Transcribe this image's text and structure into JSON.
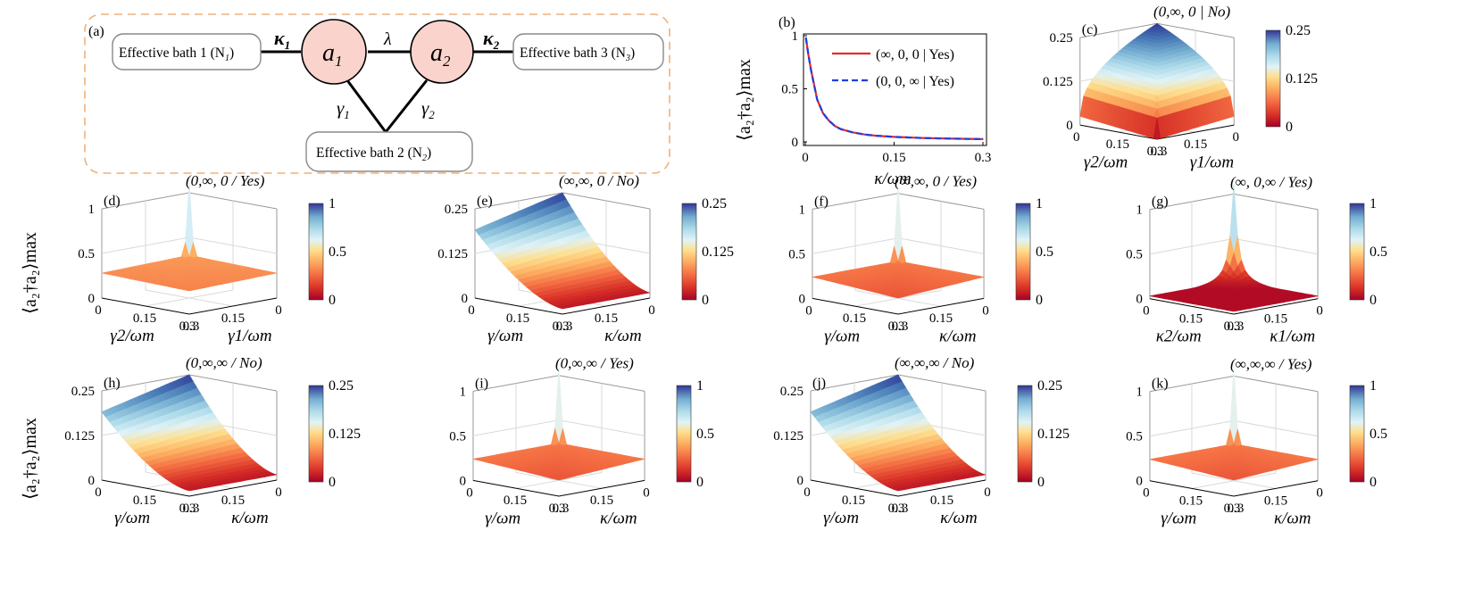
{
  "schematic": {
    "panel_label": "(a)",
    "node1": "a",
    "node1_sub": "1",
    "node2": "a",
    "node2_sub": "2",
    "coupling_lambda": "λ",
    "kappa1": "κ",
    "kappa1_sub": "1",
    "kappa2": "κ",
    "kappa2_sub": "2",
    "gamma1": "γ",
    "gamma1_sub": "1",
    "gamma2": "γ",
    "gamma2_sub": "2",
    "bath1": "Effective bath 1 (N",
    "bath1_sub": "1",
    "bath2": "Effective bath 2  (N",
    "bath2_sub": "2",
    "bath3": "Effective bath 3 (N",
    "bath3_sub": "3",
    "colors": {
      "node_fill": "#f9d3cc",
      "dash_border": "#f0b07a"
    }
  },
  "ylabel_left": "⟨a₂†a₂⟩max",
  "colorscale": [
    "#a50026",
    "#d73027",
    "#f46d43",
    "#fdae61",
    "#fee090",
    "#e0f3f8",
    "#abd9e9",
    "#74add1",
    "#4575b4",
    "#313695"
  ],
  "chart_data": [
    {
      "panel": "(b)",
      "type": "line",
      "xlabel": "κ/ωm",
      "ylabel": "⟨a₂†a₂⟩max",
      "xlim": [
        0,
        0.3
      ],
      "ylim": [
        0,
        1
      ],
      "xticks": [
        "0",
        "0.15",
        "0.3"
      ],
      "yticks": [
        "0",
        "0.5",
        "1"
      ],
      "x": [
        0.001,
        0.005,
        0.01,
        0.02,
        0.03,
        0.04,
        0.05,
        0.06,
        0.08,
        0.1,
        0.12,
        0.15,
        0.18,
        0.2,
        0.25,
        0.3
      ],
      "series": [
        {
          "name": "(∞, 0, 0 | Yes)",
          "color": "#e8282a",
          "style": "solid",
          "values": [
            0.98,
            0.83,
            0.67,
            0.4,
            0.27,
            0.2,
            0.15,
            0.12,
            0.09,
            0.07,
            0.058,
            0.047,
            0.04,
            0.036,
            0.03,
            0.026
          ]
        },
        {
          "name": "(0, 0, ∞ | Yes)",
          "color": "#1f3fe0",
          "style": "dashed",
          "values": [
            0.98,
            0.83,
            0.67,
            0.4,
            0.27,
            0.2,
            0.15,
            0.12,
            0.09,
            0.07,
            0.058,
            0.047,
            0.04,
            0.036,
            0.03,
            0.026
          ]
        }
      ]
    },
    {
      "panel": "(c)",
      "type": "surface",
      "tag": "(0,∞, 0 | No)",
      "xlabel": "γ2/ωm",
      "ylabel": "γ1/ωm",
      "zticks": [
        "0",
        "0.125",
        "0.25"
      ],
      "cbticks": [
        "0",
        "0.125",
        "0.25"
      ],
      "xticks": [
        "0",
        "0.15",
        "0.3"
      ],
      "yticks": [
        "0.3",
        "0.15",
        "0"
      ],
      "zmax": 0.25,
      "surface": "diagonal"
    },
    {
      "panel": "(d)",
      "type": "surface",
      "tag": "(0,∞, 0 / Yes)",
      "xlabel": "γ2/ωm",
      "ylabel": "γ1/ωm",
      "zticks": [
        "0",
        "0.5",
        "1"
      ],
      "cbticks": [
        "0",
        "0.5",
        "1"
      ],
      "xticks": [
        "0",
        "0.15",
        "0.3"
      ],
      "yticks": [
        "0.3",
        "0.15",
        "0"
      ],
      "zmax": 1,
      "surface": "flat_orange"
    },
    {
      "panel": "(e)",
      "type": "surface",
      "tag": "(∞,∞, 0 / No)",
      "xlabel": "γ/ωm",
      "ylabel": "κ/ωm",
      "zticks": [
        "0",
        "0.125",
        "0.25"
      ],
      "cbticks": [
        "0",
        "0.125",
        "0.25"
      ],
      "xticks": [
        "0",
        "0.15",
        "0.3"
      ],
      "yticks": [
        "0.3",
        "0.15",
        "0"
      ],
      "zmax": 0.25,
      "surface": "ramp"
    },
    {
      "panel": "(f)",
      "type": "surface",
      "tag": "(∞,∞, 0 / Yes)",
      "xlabel": "γ/ωm",
      "ylabel": "κ/ωm",
      "zticks": [
        "0",
        "0.5",
        "1"
      ],
      "cbticks": [
        "0",
        "0.5",
        "1"
      ],
      "xticks": [
        "0",
        "0.15",
        "0.3"
      ],
      "yticks": [
        "0.3",
        "0.15",
        "0"
      ],
      "zmax": 1,
      "surface": "spike"
    },
    {
      "panel": "(g)",
      "type": "surface",
      "tag": "(∞, 0,∞ / Yes)",
      "xlabel": "κ2/ωm",
      "ylabel": "κ1/ωm",
      "zticks": [
        "0",
        "0.5",
        "1"
      ],
      "cbticks": [
        "0",
        "0.5",
        "1"
      ],
      "xticks": [
        "0",
        "0.15",
        "0.3"
      ],
      "yticks": [
        "0.3",
        "0.15",
        "0"
      ],
      "zmax": 1,
      "surface": "spike_dark"
    },
    {
      "panel": "(h)",
      "type": "surface",
      "tag": "(0,∞,∞ / No)",
      "xlabel": "γ/ωm",
      "ylabel": "κ/ωm",
      "zticks": [
        "0",
        "0.125",
        "0.25"
      ],
      "cbticks": [
        "0",
        "0.125",
        "0.25"
      ],
      "xticks": [
        "0",
        "0.15",
        "0.3"
      ],
      "yticks": [
        "0.3",
        "0.15",
        "0"
      ],
      "zmax": 0.25,
      "surface": "ramp"
    },
    {
      "panel": "(i)",
      "type": "surface",
      "tag": "(0,∞,∞ / Yes)",
      "xlabel": "γ/ωm",
      "ylabel": "κ/ωm",
      "zticks": [
        "0",
        "0.5",
        "1"
      ],
      "cbticks": [
        "0",
        "0.5",
        "1"
      ],
      "xticks": [
        "0",
        "0.15",
        "0.3"
      ],
      "yticks": [
        "0.3",
        "0.15",
        "0"
      ],
      "zmax": 1,
      "surface": "spike"
    },
    {
      "panel": "(j)",
      "type": "surface",
      "tag": "(∞,∞,∞ / No)",
      "xlabel": "γ/ωm",
      "ylabel": "κ/ωm",
      "zticks": [
        "0",
        "0.125",
        "0.25"
      ],
      "cbticks": [
        "0",
        "0.125",
        "0.25"
      ],
      "xticks": [
        "0",
        "0.15",
        "0.3"
      ],
      "yticks": [
        "0.3",
        "0.15",
        "0"
      ],
      "zmax": 0.25,
      "surface": "ramp"
    },
    {
      "panel": "(k)",
      "type": "surface",
      "tag": "(∞,∞,∞ / Yes)",
      "xlabel": "γ/ωm",
      "ylabel": "κ/ωm",
      "zticks": [
        "0",
        "0.5",
        "1"
      ],
      "cbticks": [
        "0",
        "0.5",
        "1"
      ],
      "xticks": [
        "0",
        "0.15",
        "0.3"
      ],
      "yticks": [
        "0.3",
        "0.15",
        "0"
      ],
      "zmax": 1,
      "surface": "spike"
    }
  ]
}
